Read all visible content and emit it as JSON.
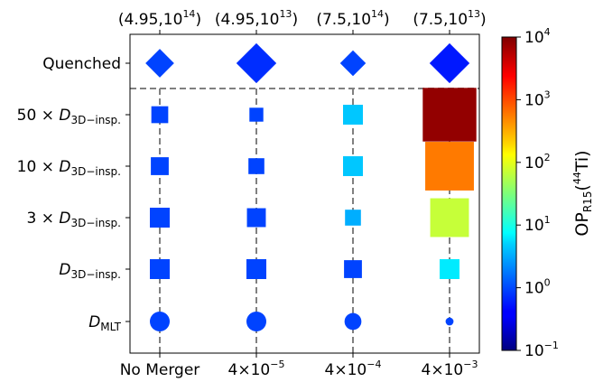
{
  "chart_data": {
    "type": "scatter",
    "x_categories": [
      "No Merger",
      "4×10",
      "4×10",
      "4×10"
    ],
    "x_exponents": [
      "",
      "−5",
      "−4",
      "−3"
    ],
    "top_categories": [
      {
        "base": "(4.95,10",
        "exp": "14",
        "close": ")"
      },
      {
        "base": "(4.95,10",
        "exp": "13",
        "close": ")"
      },
      {
        "base": "(7.5,10",
        "exp": "14",
        "close": ")"
      },
      {
        "base": "(7.5,10",
        "exp": "13",
        "close": ")"
      }
    ],
    "y_categories": [
      {
        "prefix": "",
        "sym": "D",
        "sub": "MLT"
      },
      {
        "prefix": "",
        "sym": "D",
        "sub": "3D−insp."
      },
      {
        "prefix": "3 × ",
        "sym": "D",
        "sub": "3D−insp."
      },
      {
        "prefix": "10 × ",
        "sym": "D",
        "sub": "3D−insp."
      },
      {
        "prefix": "50 × ",
        "sym": "D",
        "sub": "3D−insp."
      },
      {
        "prefix": "Quenched",
        "sym": "",
        "sub": ""
      }
    ],
    "colorbar": {
      "label_base": "OP",
      "label_sub": "R15",
      "label_paren_open": "(",
      "label_sup": "44",
      "label_tail": "Ti)",
      "scale": "log",
      "range": [
        0.1,
        10000
      ],
      "colormap": "jet",
      "tick_base": "10",
      "ticks": [
        {
          "value": 0.1,
          "exp": "−1"
        },
        {
          "value": 1,
          "exp": "0"
        },
        {
          "value": 10,
          "exp": "1"
        },
        {
          "value": 100,
          "exp": "2"
        },
        {
          "value": 1000,
          "exp": "3"
        },
        {
          "value": 10000,
          "exp": "4"
        }
      ]
    },
    "points": [
      {
        "x": 0,
        "y": 0,
        "marker": "circle",
        "op": 0.9,
        "size": 1.0
      },
      {
        "x": 1,
        "y": 0,
        "marker": "circle",
        "op": 0.9,
        "size": 1.0
      },
      {
        "x": 2,
        "y": 0,
        "marker": "circle",
        "op": 0.9,
        "size": 0.85
      },
      {
        "x": 3,
        "y": 0,
        "marker": "circle",
        "op": 0.9,
        "size": 0.4
      },
      {
        "x": 0,
        "y": 1,
        "marker": "square",
        "op": 0.9,
        "size": 1.0
      },
      {
        "x": 1,
        "y": 1,
        "marker": "square",
        "op": 0.9,
        "size": 1.0
      },
      {
        "x": 2,
        "y": 1,
        "marker": "square",
        "op": 0.9,
        "size": 0.9
      },
      {
        "x": 3,
        "y": 1,
        "marker": "square",
        "op": 6,
        "size": 1.0
      },
      {
        "x": 0,
        "y": 2,
        "marker": "square",
        "op": 0.9,
        "size": 1.0
      },
      {
        "x": 1,
        "y": 2,
        "marker": "square",
        "op": 0.9,
        "size": 0.95
      },
      {
        "x": 2,
        "y": 2,
        "marker": "square",
        "op": 3,
        "size": 0.8
      },
      {
        "x": 3,
        "y": 2,
        "marker": "square",
        "op": 70,
        "size": 1.95
      },
      {
        "x": 0,
        "y": 3,
        "marker": "square",
        "op": 0.9,
        "size": 0.9
      },
      {
        "x": 1,
        "y": 3,
        "marker": "square",
        "op": 0.9,
        "size": 0.8
      },
      {
        "x": 2,
        "y": 3,
        "marker": "square",
        "op": 4,
        "size": 1.0
      },
      {
        "x": 3,
        "y": 3,
        "marker": "square",
        "op": 600,
        "size": 2.45
      },
      {
        "x": 0,
        "y": 4,
        "marker": "square",
        "op": 0.9,
        "size": 0.85
      },
      {
        "x": 1,
        "y": 4,
        "marker": "square",
        "op": 0.9,
        "size": 0.7
      },
      {
        "x": 2,
        "y": 4,
        "marker": "square",
        "op": 4,
        "size": 1.0
      },
      {
        "x": 3,
        "y": 4,
        "marker": "square",
        "op": 8000,
        "size": 2.7
      },
      {
        "x": 0,
        "y": 5,
        "marker": "diamond",
        "op": 0.9,
        "size": 1.0
      },
      {
        "x": 1,
        "y": 5,
        "marker": "diamond",
        "op": 0.7,
        "size": 1.4
      },
      {
        "x": 2,
        "y": 5,
        "marker": "diamond",
        "op": 0.9,
        "size": 0.9
      },
      {
        "x": 3,
        "y": 5,
        "marker": "diamond",
        "op": 0.55,
        "size": 1.4
      }
    ]
  }
}
